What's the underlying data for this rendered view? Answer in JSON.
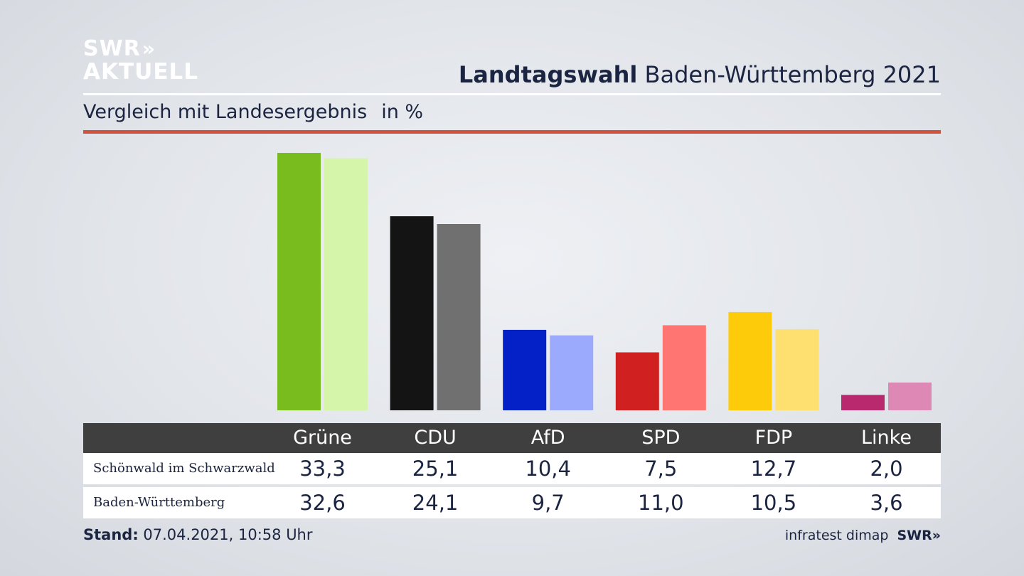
{
  "logo": {
    "line1": "SWR",
    "chevrons": "»",
    "line2": "AKTUELL"
  },
  "header": {
    "title_bold": "Landtagswahl",
    "title_rest": " Baden-Württemberg 2021"
  },
  "subtitle": {
    "text": "Vergleich mit Landesergebnis",
    "unit": "in %"
  },
  "chart_data": {
    "type": "bar",
    "title": "Landtagswahl Baden-Württemberg 2021",
    "subtitle": "Vergleich mit Landesergebnis in %",
    "categories": [
      "Grüne",
      "CDU",
      "AfD",
      "SPD",
      "FDP",
      "Linke"
    ],
    "series": [
      {
        "name": "Schönwald im Schwarzwald",
        "values": [
          33.3,
          25.1,
          10.4,
          7.5,
          12.7,
          2.0
        ]
      },
      {
        "name": "Baden-Württemberg",
        "values": [
          32.6,
          24.1,
          9.7,
          11.0,
          10.5,
          3.6
        ]
      }
    ],
    "display_values": [
      [
        "33,3",
        "25,1",
        "10,4",
        "7,5",
        "12,7",
        "2,0"
      ],
      [
        "32,6",
        "24,1",
        "9,7",
        "11,0",
        "10,5",
        "3,6"
      ]
    ],
    "colors_primary": [
      "#79bc1e",
      "#141414",
      "#0321c6",
      "#d12020",
      "#fecb0a",
      "#b9296d"
    ],
    "colors_secondary": [
      "#d5f5ab",
      "#717070",
      "#9caafe",
      "#fe7571",
      "#fde06f",
      "#de89b5"
    ],
    "ylim": [
      0,
      33.3
    ],
    "grid": false,
    "legend": "table-below"
  },
  "footer": {
    "label": "Stand:",
    "value": "07.04.2021, 10:58 Uhr"
  },
  "source": {
    "text": "infratest dimap",
    "brand": "SWR»"
  }
}
